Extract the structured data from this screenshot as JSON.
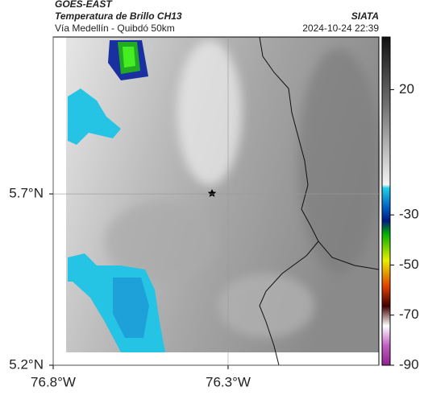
{
  "header": {
    "source": "GOES-EAST",
    "product": "Temperatura de Brillo CH13",
    "region": "Vía Medellín - Quibdó 50km",
    "agency": "SIATA",
    "timestamp": "2024-10-24 22:39"
  },
  "map": {
    "xlim": [
      -76.8,
      -75.869
    ],
    "ylim": [
      5.2,
      6.158
    ],
    "xticks": [
      {
        "value": -76.8,
        "label": "76.8°W"
      },
      {
        "value": -76.3,
        "label": "76.3°W"
      }
    ],
    "yticks": [
      {
        "value": 5.2,
        "label": "5.2°N"
      },
      {
        "value": 5.7,
        "label": "5.7°N"
      }
    ],
    "grid": true
  },
  "colorbar": {
    "lim": [
      41,
      -90
    ],
    "ticks": [
      20,
      -30,
      -50,
      -70,
      -90
    ]
  }
}
